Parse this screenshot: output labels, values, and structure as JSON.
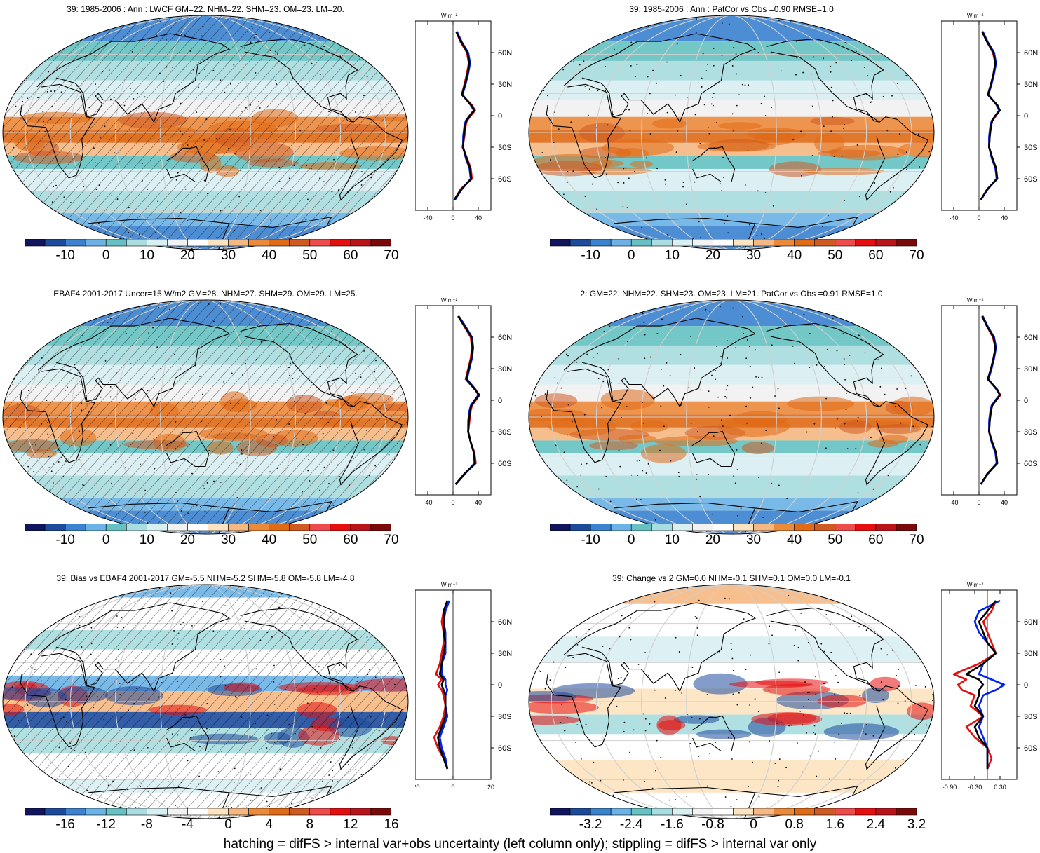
{
  "footer": "hatching = difFS > internal var+obs uncertainty (left column only); stippling = difFS > internal var only",
  "profile_unit": "W m⁻²",
  "lat_labels": [
    "60N",
    "30N",
    "0",
    "30S",
    "60S"
  ],
  "colors": {
    "standard": [
      "#10155e",
      "#1d4b9c",
      "#3b82cf",
      "#6bb3e6",
      "#66c2c2",
      "#a9dde0",
      "#d9f0f3",
      "#f2f2f2",
      "#ffffff",
      "#fde3c0",
      "#f6b882",
      "#ec8a3c",
      "#e06a15",
      "#cf5a22",
      "#ee4b4b",
      "#e60f0f",
      "#b8141a",
      "#7a0a0a"
    ],
    "model_line": "#e60f0f",
    "obs_line": "#0022ee",
    "ref_line": "#000000"
  },
  "panels": [
    {
      "id": "a",
      "title": "39: 1985-2006 : Ann : LWCF GM=22. NHM=22. SHM=23. OM=23. LM=20.",
      "colorbar_labels": [
        "-10",
        "0",
        "10",
        "20",
        "30",
        "40",
        "50",
        "60",
        "70"
      ],
      "profile_ticks": [
        "-40",
        "0",
        "40"
      ],
      "profile_xlim": [
        -60,
        60
      ],
      "chart_data": {
        "type": "heatmap",
        "field": "longwave cloud forcing",
        "color_levels": [
          -15,
          -10,
          -5,
          0,
          5,
          10,
          15,
          20,
          25,
          30,
          35,
          40,
          45,
          50,
          55,
          60,
          65,
          70,
          75
        ],
        "zonal_profile": {
          "lat": [
            80,
            70,
            60,
            50,
            40,
            30,
            20,
            10,
            5,
            0,
            -5,
            -10,
            -20,
            -30,
            -40,
            -50,
            -60,
            -70,
            -80
          ],
          "series": [
            {
              "values": [
                5,
                12,
                22,
                25,
                22,
                18,
                14,
                30,
                35,
                28,
                22,
                20,
                18,
                15,
                22,
                28,
                30,
                12,
                2
              ]
            },
            {
              "values": [
                6,
                14,
                24,
                27,
                24,
                20,
                15,
                28,
                33,
                26,
                20,
                18,
                16,
                16,
                20,
                26,
                28,
                14,
                3
              ]
            },
            {
              "values": [
                5,
                13,
                23,
                26,
                23,
                19,
                14,
                29,
                34,
                27,
                21,
                19,
                17,
                16,
                21,
                27,
                29,
                13,
                2
              ]
            }
          ]
        }
      }
    },
    {
      "id": "b",
      "title": "39: 1985-2006 : Ann : PatCor vs Obs =0.90 RMSE=1.0",
      "colorbar_labels": [
        "-10",
        "0",
        "10",
        "20",
        "30",
        "40",
        "50",
        "60",
        "70"
      ],
      "profile_ticks": [
        "-40",
        "0",
        "40"
      ],
      "profile_xlim": [
        -60,
        60
      ],
      "chart_data": {
        "type": "heatmap",
        "field": "longwave cloud forcing",
        "color_levels": [
          -15,
          -10,
          -5,
          0,
          5,
          10,
          15,
          20,
          25,
          30,
          35,
          40,
          45,
          50,
          55,
          60,
          65,
          70,
          75
        ],
        "zonal_profile": {
          "lat": [
            80,
            70,
            60,
            50,
            40,
            30,
            20,
            10,
            5,
            0,
            -5,
            -10,
            -20,
            -30,
            -40,
            -50,
            -60,
            -70,
            -80
          ],
          "series": [
            {
              "values": [
                5,
                13,
                22,
                26,
                23,
                19,
                14,
                29,
                33,
                27,
                21,
                19,
                17,
                16,
                21,
                27,
                29,
                13,
                3
              ]
            },
            {
              "values": [
                6,
                14,
                24,
                27,
                24,
                20,
                15,
                28,
                32,
                26,
                20,
                18,
                16,
                16,
                20,
                26,
                28,
                14,
                3
              ]
            },
            {
              "values": [
                5,
                13,
                23,
                26,
                23,
                19,
                14,
                29,
                33,
                26,
                21,
                19,
                17,
                16,
                21,
                27,
                29,
                13,
                3
              ]
            }
          ]
        }
      }
    },
    {
      "id": "c",
      "title": "EBAF4 2001-2017 Uncer=15 W/m2 GM=28. NHM=27. SHM=29. OM=29. LM=25.",
      "colorbar_labels": [
        "-10",
        "0",
        "10",
        "20",
        "30",
        "40",
        "50",
        "60",
        "70"
      ],
      "profile_ticks": [
        "-40",
        "0",
        "40"
      ],
      "profile_xlim": [
        -60,
        60
      ],
      "chart_data": {
        "type": "heatmap",
        "field": "longwave cloud forcing",
        "color_levels": [
          -15,
          -10,
          -5,
          0,
          5,
          10,
          15,
          20,
          25,
          30,
          35,
          40,
          45,
          50,
          55,
          60,
          65,
          70,
          75
        ],
        "zonal_profile": {
          "lat": [
            80,
            70,
            60,
            50,
            40,
            30,
            20,
            10,
            5,
            0,
            -5,
            -10,
            -20,
            -30,
            -40,
            -50,
            -60,
            -70,
            -80
          ],
          "series": [
            {
              "values": [
                8,
                18,
                28,
                30,
                28,
                24,
                20,
                35,
                42,
                36,
                30,
                28,
                26,
                24,
                28,
                34,
                36,
                18,
                4
              ]
            },
            {
              "values": [
                9,
                20,
                30,
                32,
                30,
                26,
                22,
                36,
                40,
                34,
                28,
                26,
                24,
                24,
                28,
                33,
                34,
                19,
                4
              ]
            },
            {
              "values": [
                8,
                19,
                29,
                31,
                29,
                25,
                21,
                35,
                41,
                35,
                29,
                27,
                25,
                24,
                28,
                33,
                35,
                18,
                4
              ]
            }
          ]
        }
      }
    },
    {
      "id": "d",
      "title": "2: GM=22. NHM=22. SHM=23. OM=23. LM=21. PatCor vs Obs =0.91 RMSE=1.0",
      "colorbar_labels": [
        "-10",
        "0",
        "10",
        "20",
        "30",
        "40",
        "50",
        "60",
        "70"
      ],
      "profile_ticks": [
        "-40",
        "0",
        "40"
      ],
      "profile_xlim": [
        -60,
        60
      ],
      "chart_data": {
        "type": "heatmap",
        "field": "longwave cloud forcing",
        "color_levels": [
          -15,
          -10,
          -5,
          0,
          5,
          10,
          15,
          20,
          25,
          30,
          35,
          40,
          45,
          50,
          55,
          60,
          65,
          70,
          75
        ],
        "zonal_profile": {
          "lat": [
            80,
            70,
            60,
            50,
            40,
            30,
            20,
            10,
            5,
            0,
            -5,
            -10,
            -20,
            -30,
            -40,
            -50,
            -60,
            -70,
            -80
          ],
          "series": [
            {
              "values": [
                5,
                13,
                22,
                26,
                23,
                19,
                14,
                29,
                34,
                27,
                21,
                19,
                17,
                16,
                21,
                27,
                29,
                13,
                3
              ]
            },
            {
              "values": [
                6,
                14,
                24,
                27,
                24,
                20,
                15,
                28,
                33,
                26,
                20,
                18,
                16,
                16,
                20,
                26,
                28,
                14,
                3
              ]
            },
            {
              "values": [
                5,
                13,
                23,
                26,
                23,
                19,
                14,
                29,
                33,
                27,
                21,
                19,
                17,
                16,
                21,
                27,
                29,
                13,
                3
              ]
            }
          ]
        }
      }
    },
    {
      "id": "e",
      "title": "39: Bias vs EBAF4 2001-2017 GM=-5.5 NHM=-5.2 SHM=-5.8 OM=-5.8 LM=-4.8",
      "colorbar_labels": [
        "-16",
        "-12",
        "-8",
        "-4",
        "0",
        "4",
        "8",
        "12",
        "16"
      ],
      "profile_ticks": [
        "-20",
        "0",
        "20"
      ],
      "profile_xlim": [
        -20,
        20
      ],
      "chart_data": {
        "type": "heatmap",
        "field": "bias",
        "color_levels": [
          -18,
          -16,
          -14,
          -12,
          -10,
          -8,
          -6,
          -4,
          -2,
          0,
          2,
          4,
          6,
          8,
          10,
          12,
          14,
          16,
          18
        ],
        "zonal_profile": {
          "lat": [
            80,
            70,
            60,
            50,
            40,
            30,
            20,
            10,
            5,
            0,
            -5,
            -10,
            -20,
            -30,
            -40,
            -50,
            -60,
            -70,
            -80
          ],
          "series": [
            {
              "values": [
                -3,
                -5,
                -6,
                -5,
                -5,
                -6,
                -7,
                -9,
                -6,
                -8,
                -6,
                -5,
                -4,
                -5,
                -7,
                -10,
                -8,
                -5,
                -3
              ]
            },
            {
              "values": [
                -2,
                -4,
                -5,
                -4,
                -4,
                -4,
                -6,
                -6,
                -4,
                -4,
                -3,
                -4,
                -4,
                -3,
                -5,
                -7,
                -6,
                -4,
                -3
              ]
            },
            {
              "values": [
                -3,
                -5,
                -5,
                -5,
                -4,
                -5,
                -6,
                -7,
                -5,
                -6,
                -5,
                -4,
                -4,
                -4,
                -6,
                -8,
                -7,
                -5,
                -3
              ]
            }
          ]
        }
      }
    },
    {
      "id": "f",
      "title": "39: Change vs 2 GM=0.0 NHM=-0.1 SHM=0.1 OM=0.0 LM=-0.1",
      "colorbar_labels": [
        "-3.2",
        "-2.4",
        "-1.6",
        "-0.8",
        "0",
        "0.8",
        "1.6",
        "2.4",
        "3.2"
      ],
      "profile_ticks": [
        "-0.90",
        "-0.30",
        "0.30"
      ],
      "profile_xlim": [
        -1.1,
        0.7
      ],
      "chart_data": {
        "type": "heatmap",
        "field": "change",
        "color_levels": [
          -3.6,
          -3.2,
          -2.8,
          -2.4,
          -2.0,
          -1.6,
          -1.2,
          -0.8,
          -0.4,
          0,
          0.4,
          0.8,
          1.2,
          1.6,
          2.0,
          2.4,
          2.8,
          3.2,
          3.6
        ],
        "zonal_profile": {
          "lat": [
            80,
            70,
            60,
            50,
            40,
            30,
            20,
            10,
            5,
            0,
            -5,
            -10,
            -20,
            -30,
            -40,
            -50,
            -60,
            -70,
            -80
          ],
          "series": [
            {
              "values": [
                0.2,
                0.1,
                -0.1,
                0.0,
                0.1,
                0.2,
                -0.2,
                -0.8,
                -0.5,
                -0.7,
                -0.6,
                -0.3,
                -0.4,
                -0.1,
                -0.5,
                -0.3,
                0.0,
                0.1,
                0.0
              ]
            },
            {
              "values": [
                0.3,
                -0.2,
                -0.3,
                -0.2,
                0.0,
                0.2,
                -0.1,
                -0.2,
                0.1,
                0.4,
                0.2,
                -0.1,
                -0.2,
                -0.1,
                -0.2,
                -0.1,
                0.0,
                0.0,
                0.0
              ]
            },
            {
              "values": [
                0.2,
                0.0,
                -0.2,
                -0.1,
                0.0,
                0.2,
                -0.1,
                -0.5,
                -0.2,
                -0.1,
                -0.2,
                -0.2,
                -0.3,
                -0.1,
                -0.3,
                -0.2,
                0.0,
                0.0,
                0.0
              ]
            }
          ]
        }
      }
    }
  ]
}
